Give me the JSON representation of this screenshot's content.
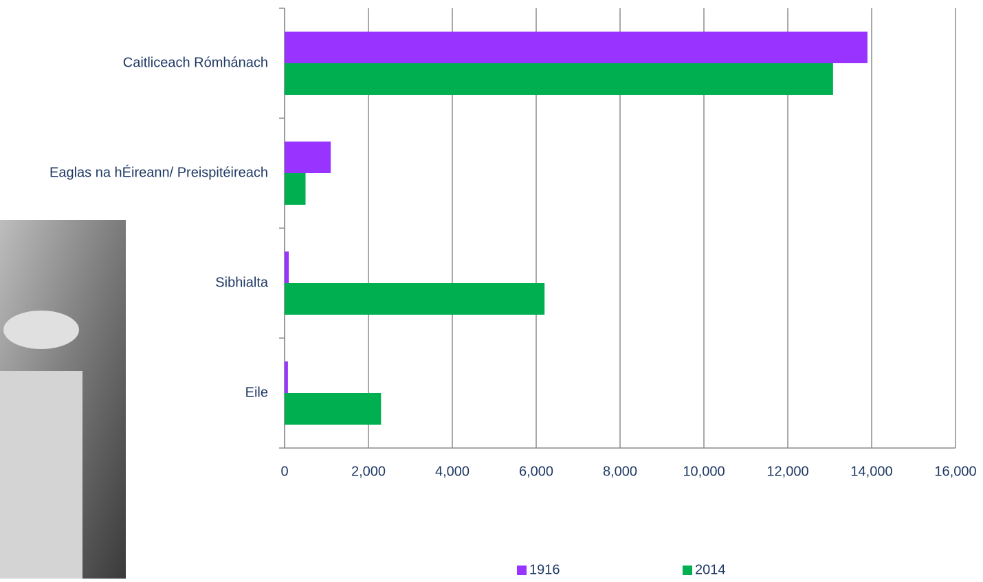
{
  "chart_data": {
    "type": "hbar",
    "categories": [
      "Caitliceach Rómhánach",
      "Eaglas na hÉireann/ Preispitéireach",
      "Sibhialta",
      "Eile"
    ],
    "series": [
      {
        "name": "1916",
        "color": "#9933ff",
        "values": [
          13900,
          1100,
          100,
          80
        ]
      },
      {
        "name": "2014",
        "color": "#00b050",
        "values": [
          13080,
          500,
          6200,
          2300
        ]
      }
    ],
    "xlim": [
      0,
      16000
    ],
    "xticks": [
      0,
      {
        "value": 2000,
        "label": "2,000"
      },
      {
        "value": 4000,
        "label": "4,000"
      },
      {
        "value": 6000,
        "label": "6,000"
      },
      {
        "value": 8000,
        "label": "8,000"
      },
      {
        "value": 10000,
        "label": "10,000"
      },
      {
        "value": 12000,
        "label": "12,000"
      },
      {
        "value": 14000,
        "label": "14,000"
      },
      {
        "value": 16000,
        "label": "16,000"
      }
    ],
    "grid": true,
    "legend": "bottom"
  }
}
